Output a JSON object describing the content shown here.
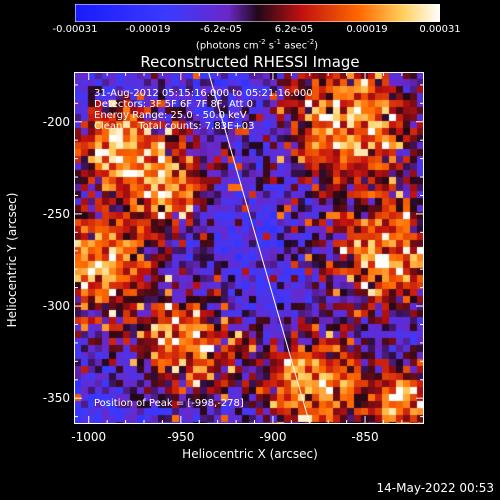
{
  "colorbar": {
    "ticks": [
      "-0.00031",
      "-0.00019",
      "-6.2e-05",
      "6.2e-05",
      "0.00019",
      "0.00031"
    ],
    "unit_text": "(photons cm",
    "unit_sup1": "-2",
    "unit_mid": " s",
    "unit_sup2": "-1",
    "unit_mid2": " asec",
    "unit_sup3": "-2",
    "unit_end": ")",
    "colors": [
      "#1a1aff",
      "#3a3aff",
      "#7a2ad0",
      "#2a0a20",
      "#c01010",
      "#ff6a00",
      "#ffd060",
      "#ffffff"
    ]
  },
  "chart_data": {
    "type": "heatmap",
    "title": "Reconstructed RHESSI Image",
    "xlabel": "Heliocentric X (arcsec)",
    "ylabel": "Heliocentric Y (arcsec)",
    "xlim": [
      -1008,
      -818
    ],
    "ylim": [
      -364,
      -173
    ],
    "xticks": [
      -1000,
      -950,
      -900,
      -850
    ],
    "yticks": [
      -200,
      -250,
      -300,
      -350
    ],
    "clim": [
      -0.00031,
      0.00031
    ],
    "peak_position": [
      -998,
      -278
    ],
    "limb_line": {
      "x1": -935,
      "y1": -173,
      "x2": -880,
      "y2": -364
    },
    "annotations": {
      "line1": "31-Aug-2012 05:15:16.000 to 05:21:16.000",
      "line2": "Detectors: 3F 5F 6F 7F 8F, Att 0",
      "line3": "Energy Range: 25.0 - 50.0 keV",
      "line4": "Clean     Total counts: 7.83E+03",
      "peak": "Position of Peak = [-998,-278]"
    }
  },
  "timestamp": "14-May-2022 00:53"
}
